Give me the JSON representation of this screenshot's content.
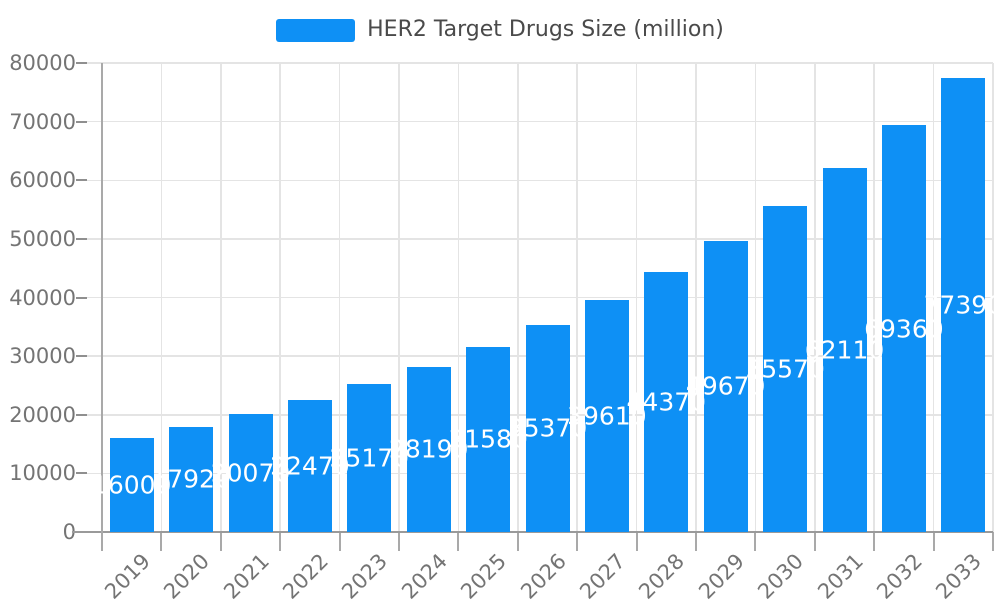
{
  "legend": {
    "label": "HER2 Target Drugs Size (million)"
  },
  "chart_data": {
    "type": "bar",
    "title": "HER2 Target Drugs Size (million)",
    "categories": [
      "2019",
      "2020",
      "2021",
      "2022",
      "2023",
      "2024",
      "2025",
      "2026",
      "2027",
      "2028",
      "2029",
      "2030",
      "2031",
      "2032",
      "2033"
    ],
    "values": [
      16000,
      17920,
      20070,
      22470,
      25170,
      28190,
      31580,
      35370,
      39610,
      44370,
      49670,
      55570,
      62110,
      69360,
      77390
    ],
    "xlabel": "",
    "ylabel": "",
    "ylim": [
      0,
      80000
    ],
    "y_ticks": [
      0,
      10000,
      20000,
      30000,
      40000,
      50000,
      60000,
      70000,
      80000
    ],
    "grid": true,
    "legend_position": "top-center",
    "bar_label_position": "inside-center",
    "colors": {
      "bar": "#0E90F5",
      "bar_label_text": "#FFFFFF",
      "axis_label": "#747474",
      "legend_text": "#4A4A4A",
      "gridline": "#E4E4E4",
      "axis_line": "#9A9A9A"
    }
  }
}
